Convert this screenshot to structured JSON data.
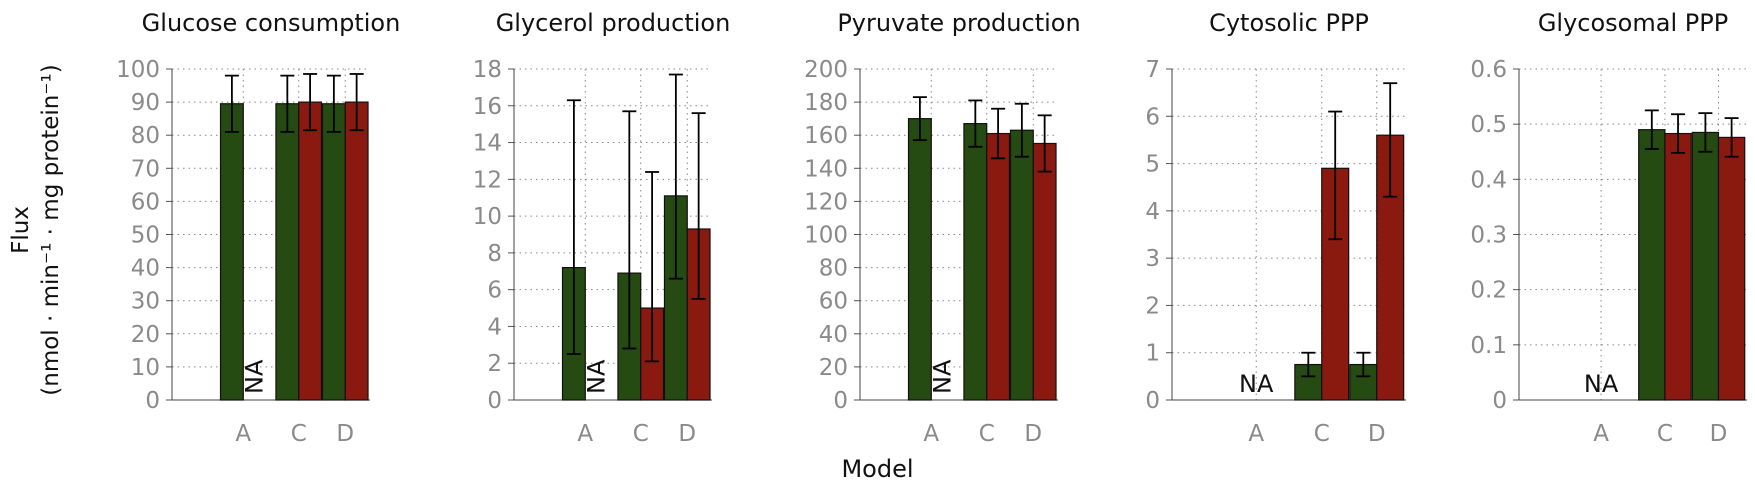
{
  "figure": {
    "ylabel_line1": "Flux",
    "ylabel_line2": "(nmol · min⁻¹ · mg protein⁻¹)",
    "xlabel": "Model",
    "na_label": "NA",
    "colors": {
      "series1": "#254a12",
      "series2": "#8a1a10",
      "axis_text": "#8a8a8a",
      "grid": "#888888"
    }
  },
  "chart_data": [
    {
      "type": "bar",
      "title": "Glucose consumption",
      "categories": [
        "A",
        "C",
        "D"
      ],
      "ylim": [
        0,
        100
      ],
      "yticks": [
        "0",
        "10",
        "20",
        "30",
        "40",
        "50",
        "60",
        "70",
        "80",
        "90",
        "100"
      ],
      "series": [
        {
          "values": [
            89.5,
            89.5,
            89.5
          ],
          "errors": [
            8.5,
            8.5,
            8.5
          ]
        },
        {
          "values": [
            null,
            90,
            90
          ],
          "errors": [
            null,
            8.5,
            8.5
          ]
        }
      ],
      "na": [
        {
          "category": "A",
          "series": 1,
          "orientation": "vertical"
        }
      ],
      "grid": true
    },
    {
      "type": "bar",
      "title": "Glycerol production",
      "categories": [
        "A",
        "C",
        "D"
      ],
      "ylim": [
        0,
        18
      ],
      "yticks": [
        "0",
        "2",
        "4",
        "6",
        "8",
        "10",
        "12",
        "14",
        "16",
        "18"
      ],
      "series": [
        {
          "values": [
            7.2,
            6.9,
            11.1
          ],
          "errors": [
            [
              4.7,
              9.1
            ],
            [
              4.1,
              8.8
            ],
            [
              4.5,
              6.6
            ]
          ]
        },
        {
          "values": [
            null,
            5.0,
            9.3
          ],
          "errors": [
            null,
            [
              2.9,
              7.4
            ],
            [
              3.8,
              6.3
            ]
          ]
        }
      ],
      "na": [
        {
          "category": "A",
          "series": 1,
          "orientation": "vertical"
        }
      ],
      "grid": true
    },
    {
      "type": "bar",
      "title": "Pyruvate production",
      "categories": [
        "A",
        "C",
        "D"
      ],
      "ylim": [
        0,
        200
      ],
      "yticks": [
        "0",
        "20",
        "40",
        "60",
        "80",
        "100",
        "120",
        "140",
        "160",
        "180",
        "200"
      ],
      "series": [
        {
          "values": [
            170,
            167,
            163
          ],
          "errors": [
            13,
            14,
            16
          ]
        },
        {
          "values": [
            null,
            161,
            155
          ],
          "errors": [
            null,
            15,
            17
          ]
        }
      ],
      "na": [
        {
          "category": "A",
          "series": 1,
          "orientation": "vertical"
        }
      ],
      "grid": true
    },
    {
      "type": "bar",
      "title": "Cytosolic PPP",
      "categories": [
        "A",
        "C",
        "D"
      ],
      "ylim": [
        0,
        7
      ],
      "yticks": [
        "0",
        "1",
        "2",
        "3",
        "4",
        "5",
        "6",
        "7"
      ],
      "series": [
        {
          "values": [
            null,
            0.75,
            0.75
          ],
          "errors": [
            null,
            0.25,
            0.25
          ]
        },
        {
          "values": [
            null,
            4.9,
            5.6
          ],
          "errors": [
            null,
            [
              1.5,
              1.2
            ],
            [
              1.3,
              1.1
            ]
          ]
        }
      ],
      "na": [
        {
          "category": "A",
          "series": "both",
          "orientation": "horizontal"
        }
      ],
      "grid": true
    },
    {
      "type": "bar",
      "title": "Glycosomal PPP",
      "categories": [
        "A",
        "C",
        "D"
      ],
      "ylim": [
        0,
        0.6
      ],
      "yticks": [
        "0",
        "0.1",
        "0.2",
        "0.3",
        "0.4",
        "0.5",
        "0.6"
      ],
      "series": [
        {
          "values": [
            null,
            0.49,
            0.485
          ],
          "errors": [
            null,
            0.035,
            0.035
          ]
        },
        {
          "values": [
            null,
            0.483,
            0.476
          ],
          "errors": [
            null,
            0.035,
            0.035
          ]
        }
      ],
      "na": [
        {
          "category": "A",
          "series": "both",
          "orientation": "horizontal"
        }
      ],
      "grid": true
    }
  ]
}
